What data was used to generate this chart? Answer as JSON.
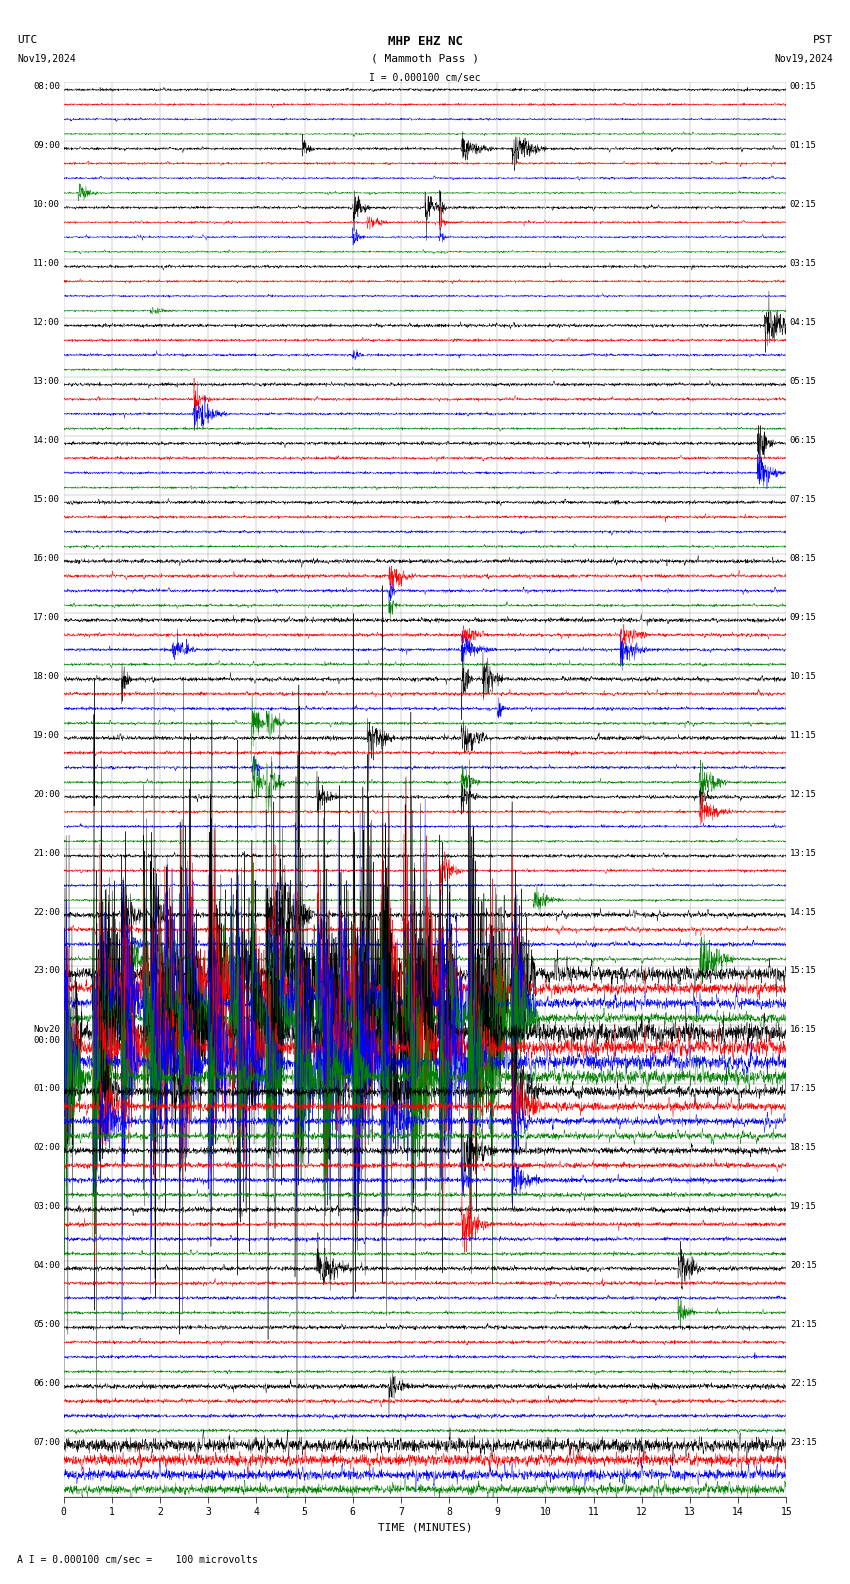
{
  "title_line1": "MHP EHZ NC",
  "title_line2": "( Mammoth Pass )",
  "scale_label": "I = 0.000100 cm/sec",
  "footer_label": "A I = 0.000100 cm/sec =    100 microvolts",
  "utc_label": "UTC",
  "pst_label": "PST",
  "date_left": "Nov19,2024",
  "date_right": "Nov19,2024",
  "xlabel": "TIME (MINUTES)",
  "background_color": "#ffffff",
  "trace_colors": [
    "black",
    "red",
    "blue",
    "green"
  ],
  "n_hours": 24,
  "traces_per_hour": 4,
  "n_minutes": 15,
  "samples_per_minute": 200,
  "fig_width": 8.5,
  "fig_height": 15.84,
  "dpi": 100,
  "grid_color": "#999999",
  "left_labels": [
    "08:00",
    "09:00",
    "10:00",
    "11:00",
    "12:00",
    "13:00",
    "14:00",
    "15:00",
    "16:00",
    "17:00",
    "18:00",
    "19:00",
    "20:00",
    "21:00",
    "22:00",
    "23:00",
    "Nov20\n00:00",
    "01:00",
    "02:00",
    "03:00",
    "04:00",
    "05:00",
    "06:00",
    "07:00"
  ],
  "right_labels": [
    "00:15",
    "01:15",
    "02:15",
    "03:15",
    "04:15",
    "05:15",
    "06:15",
    "07:15",
    "08:15",
    "09:15",
    "10:15",
    "11:15",
    "12:15",
    "13:15",
    "14:15",
    "15:15",
    "16:15",
    "17:15",
    "18:15",
    "19:15",
    "20:15",
    "21:15",
    "22:15",
    "23:15"
  ]
}
